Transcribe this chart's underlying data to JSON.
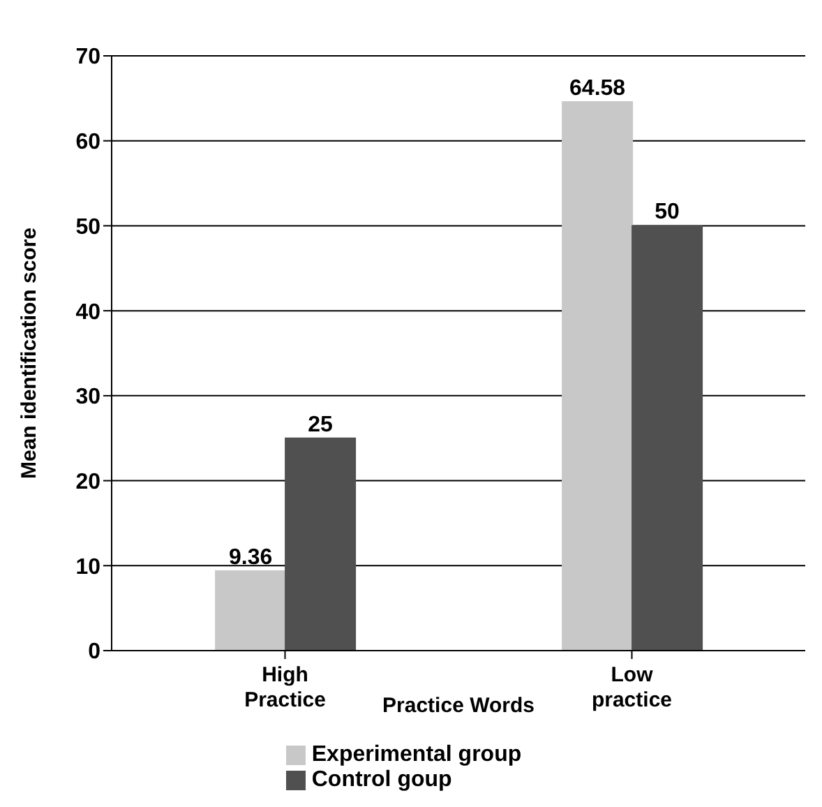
{
  "chart_data": {
    "type": "bar",
    "xlabel": "Practice Words",
    "ylabel": "Mean identification score",
    "categories": [
      "High Practice",
      "Low practice"
    ],
    "series": [
      {
        "name": "Experimental group",
        "color": "#c8c8c8",
        "values": [
          9.36,
          64.58
        ]
      },
      {
        "name": "Control goup",
        "color": "#505050",
        "values": [
          25,
          50
        ]
      }
    ],
    "ylim": [
      0,
      70
    ],
    "yticks": [
      0,
      10,
      20,
      30,
      40,
      50,
      60,
      70
    ],
    "grid": "y",
    "legend": "bottom",
    "data_labels": true
  }
}
